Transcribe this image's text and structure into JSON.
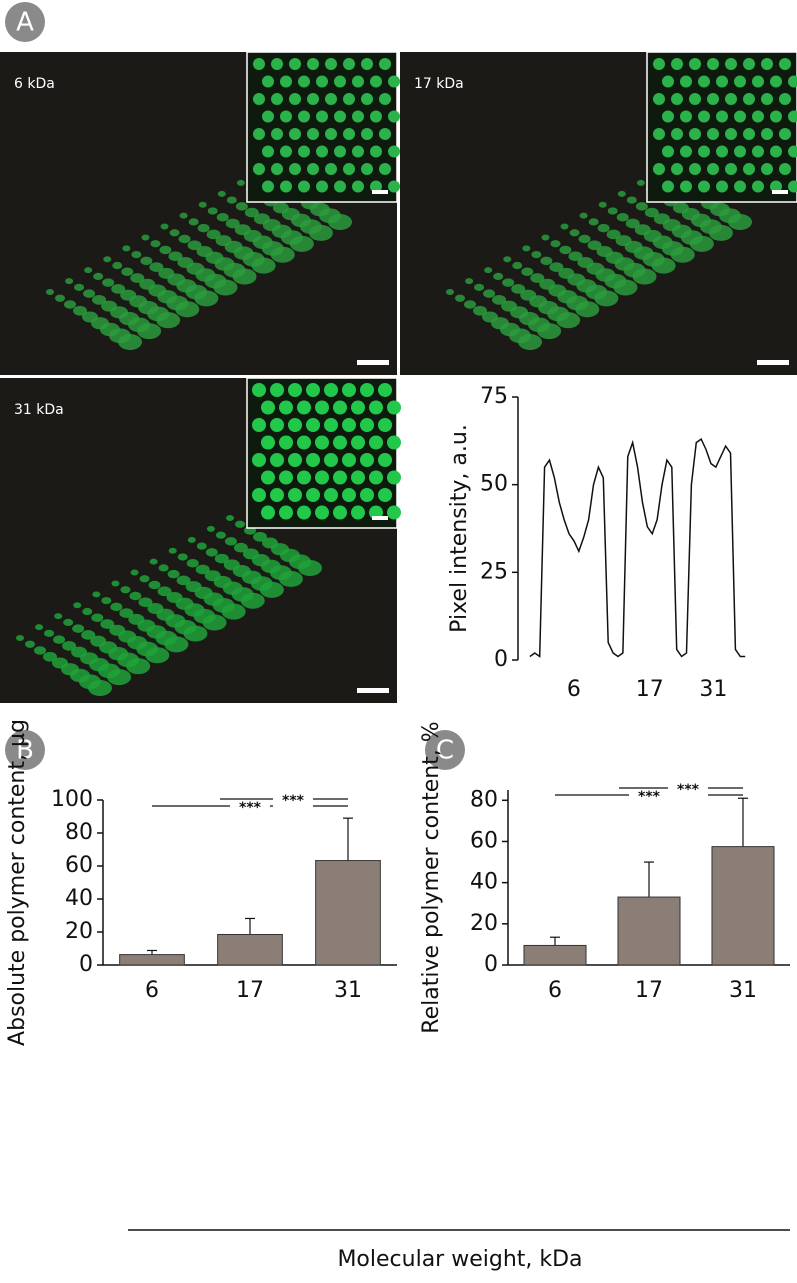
{
  "panels": [
    "A",
    "B",
    "C"
  ],
  "images": [
    "6 kDa",
    "17 kDa",
    "31 kDa"
  ],
  "x_label": "Molecular weight, kDa",
  "chart_data": [
    {
      "type": "line",
      "y_label": "Pixel intensity, a.u.",
      "color": "#111111",
      "x": [
        0,
        1,
        2,
        3,
        4,
        5,
        6,
        7,
        8,
        9,
        10,
        11,
        12,
        13,
        14,
        15,
        16,
        17,
        18,
        19,
        20,
        21,
        22,
        23,
        24,
        25,
        26,
        27,
        28,
        29,
        30,
        31,
        32,
        33,
        34,
        35,
        36,
        37,
        38,
        39,
        40,
        41,
        42,
        43,
        44
      ],
      "values": [
        1,
        2,
        1,
        55,
        57,
        52,
        45,
        40,
        36,
        34,
        31,
        35,
        40,
        50,
        55,
        52,
        5,
        2,
        1,
        2,
        58,
        62,
        55,
        45,
        38,
        36,
        40,
        50,
        57,
        55,
        3,
        1,
        2,
        50,
        62,
        63,
        60,
        56,
        55,
        58,
        61,
        59,
        3,
        1,
        1
      ],
      "xlim": [
        -1,
        46
      ],
      "xticks": [
        {
          "value": 9,
          "label": "6"
        },
        {
          "value": 24.5,
          "label": "17"
        },
        {
          "value": 37.5,
          "label": "31"
        }
      ],
      "ylim": [
        0,
        75
      ],
      "yticks": [
        0,
        25,
        50,
        75
      ]
    },
    {
      "type": "bar",
      "y_label": "Absolute polymer content, µg",
      "color": "#8b7e77",
      "categories": [
        "6",
        "17",
        "31"
      ],
      "values": [
        6.3,
        18.5,
        63.3
      ],
      "errors": [
        2.5,
        9.7,
        25.7
      ],
      "ylim": [
        0,
        100
      ],
      "yticks": [
        0,
        20,
        40,
        60,
        80,
        100
      ],
      "annotations": [
        "***",
        "***"
      ]
    },
    {
      "type": "bar",
      "y_label": "Relative polymer content, %",
      "color": "#8b7e77",
      "categories": [
        "6",
        "17",
        "31"
      ],
      "values": [
        9.5,
        33,
        57.5
      ],
      "errors": [
        4,
        17,
        23.5
      ],
      "ylim": [
        0,
        85
      ],
      "yticks": [
        0,
        20,
        40,
        60,
        80
      ],
      "annotations": [
        "***",
        "***"
      ]
    }
  ]
}
